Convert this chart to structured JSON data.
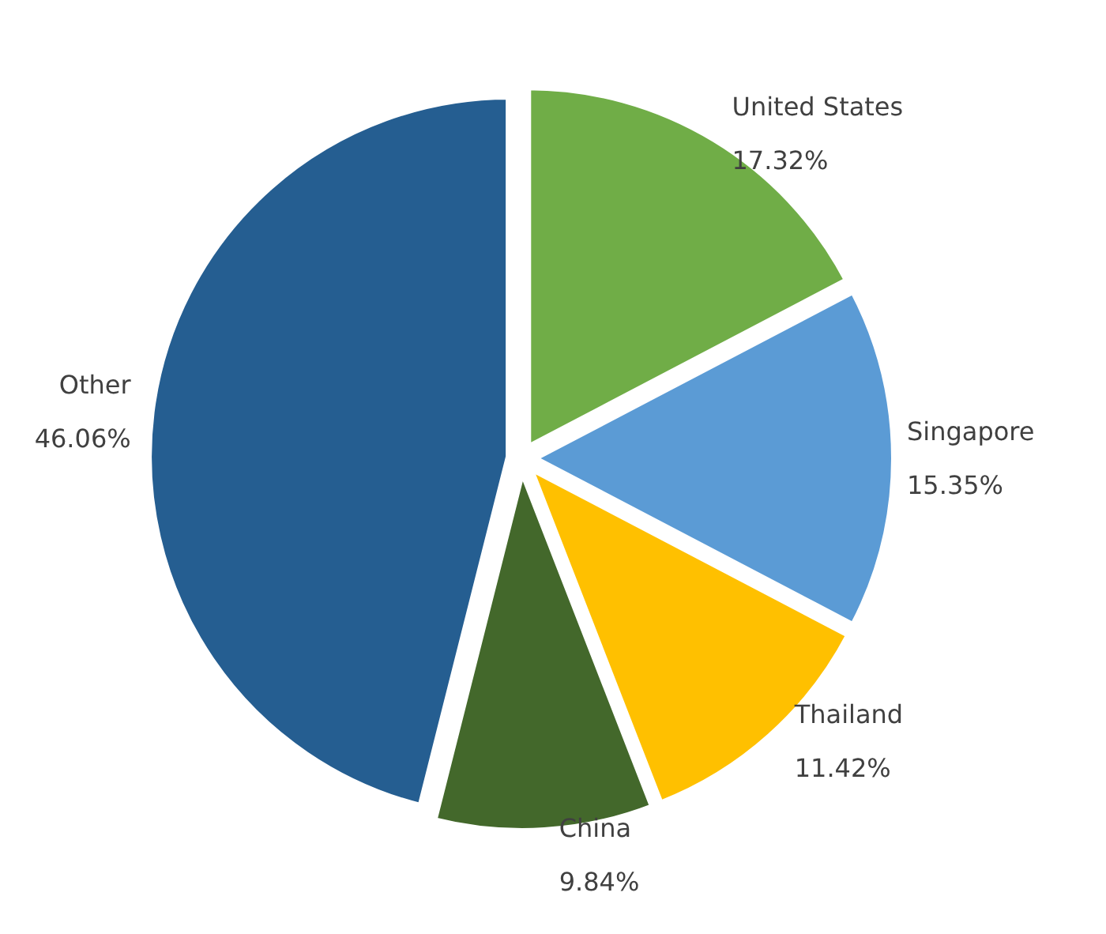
{
  "chart_data": {
    "type": "pie",
    "categories": [
      "United States",
      "Singapore",
      "Thailand",
      "China",
      "Other"
    ],
    "values": [
      17.32,
      15.35,
      11.42,
      9.84,
      46.06
    ],
    "value_labels": [
      "17.32%",
      "15.35%",
      "11.42%",
      "9.84%",
      "46.06%"
    ],
    "colors": [
      "#70ad47",
      "#5b9bd5",
      "#ffc000",
      "#43682b",
      "#255e91"
    ],
    "legend": false
  }
}
